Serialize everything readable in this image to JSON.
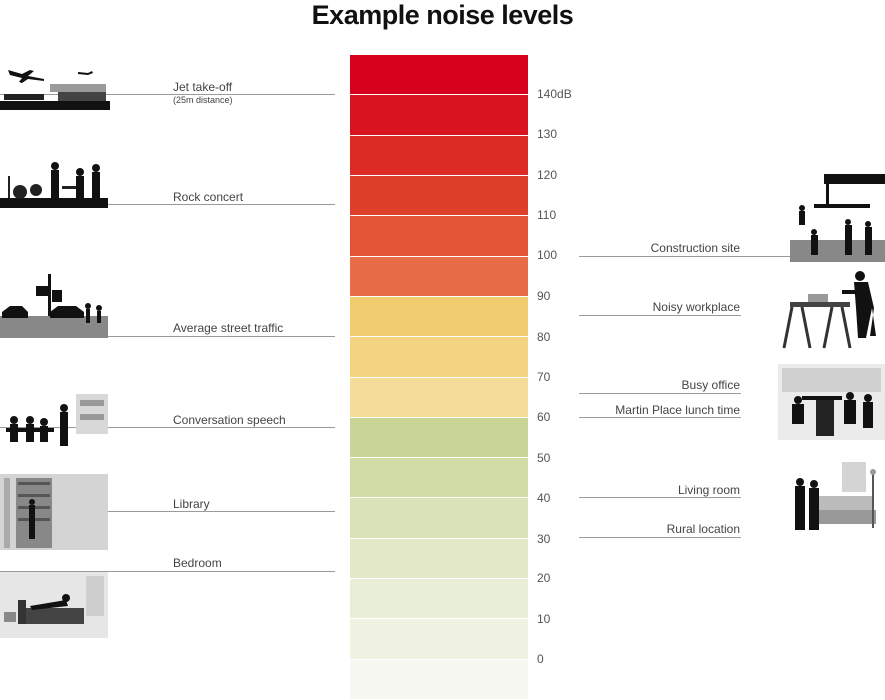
{
  "title": "Example noise levels",
  "scale": {
    "colors": [
      "#d6001c",
      "#d7141f",
      "#db2b24",
      "#de3f2b",
      "#e25537",
      "#e86c48",
      "#f2cd6f",
      "#f4d480",
      "#f6dc99",
      "#c9d596",
      "#d1dba6",
      "#dae2b8",
      "#e2e8c8",
      "#e9eed6",
      "#f0f2e3",
      "#f7f8f1"
    ],
    "ticks": [
      "140dB",
      "130",
      "120",
      "110",
      "100",
      "90",
      "80",
      "70",
      "60",
      "50",
      "40",
      "30",
      "20",
      "10",
      "0"
    ]
  },
  "left_labels": [
    {
      "text": "Jet take-off",
      "sub": "(25m distance)"
    },
    {
      "text": "Rock concert"
    },
    {
      "text": "Average street traffic"
    },
    {
      "text": "Conversation speech"
    },
    {
      "text": "Library"
    },
    {
      "text": "Bedroom"
    }
  ],
  "right_labels": [
    {
      "text": "Construction site"
    },
    {
      "text": "Noisy workplace"
    },
    {
      "text": "Busy office"
    },
    {
      "text": "Martin Place lunch time"
    },
    {
      "text": "Living room"
    },
    {
      "text": "Rural location"
    }
  ],
  "icons": [
    "jet-takeoff-icon",
    "rock-concert-icon",
    "street-traffic-icon",
    "conversation-icon",
    "library-icon",
    "bedroom-icon",
    "construction-site-icon",
    "noisy-workplace-icon",
    "busy-office-icon",
    "living-room-icon"
  ]
}
